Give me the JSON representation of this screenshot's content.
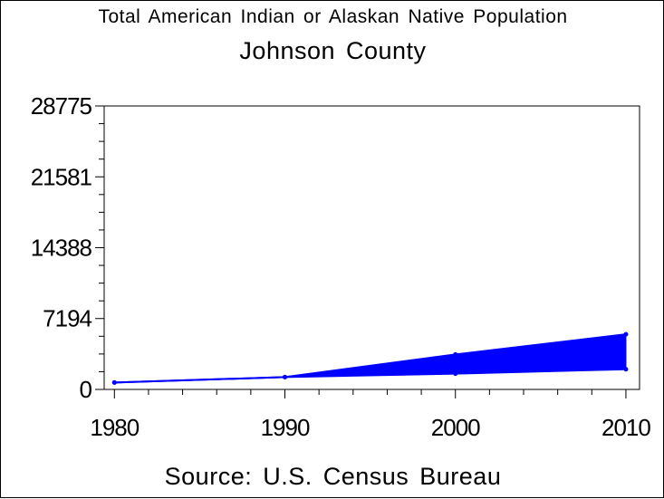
{
  "chart_data": {
    "type": "area",
    "title": "Total American Indian or Alaskan Native Population",
    "subtitle": "Johnson County",
    "source": "Source: U.S. Census Bureau",
    "xlabel": "",
    "ylabel": "",
    "x": [
      1980,
      1990,
      2000,
      2010
    ],
    "x_ticks": [
      "1980",
      "1990",
      "2000",
      "2010"
    ],
    "y_ticks": [
      "0",
      "7194",
      "14388",
      "21581",
      "28775"
    ],
    "ylim": [
      0,
      28775
    ],
    "xlim": [
      1979.4,
      2010.8
    ],
    "series": [
      {
        "values": [
          700,
          1250,
          3550,
          5600
        ]
      },
      {
        "values": [
          700,
          1250,
          1600,
          2050
        ]
      }
    ],
    "grid": false,
    "color": "#0000ff"
  }
}
